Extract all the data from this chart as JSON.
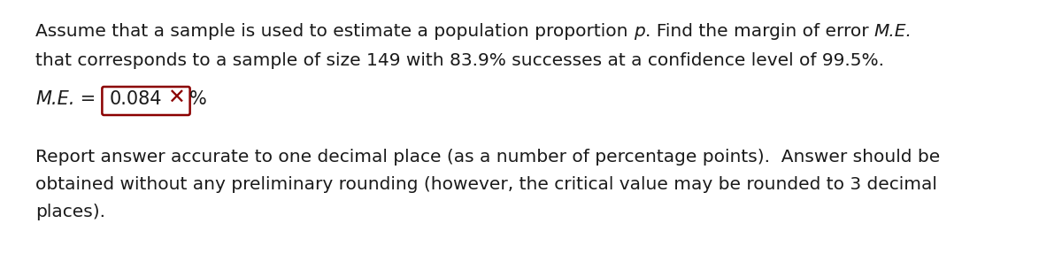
{
  "bg_color": "#ffffff",
  "text_color": "#1a1a1a",
  "me_x_color": "#8B0000",
  "me_box_color": "#8B0000",
  "font_size": 14.5,
  "font_size_me": 15.0,
  "line1_part1": "Assume that a sample is used to estimate a population proportion ",
  "line1_italic1": "p",
  "line1_part2": ". Find the margin of error ",
  "line1_italic2": "M.E.",
  "line2": "that corresponds to a sample of size 149 with 83.9% successes at a confidence level of 99.5%.",
  "me_label_italic": "M.E.",
  "me_equals": " = ",
  "me_value": "0.084",
  "me_xmark": "✕",
  "me_suffix": "%",
  "report1": "Report answer accurate to one decimal place (as a number of percentage points).  Answer should be",
  "report2": "obtained without any preliminary rounding (however, the critical value may be rounded to 3 decimal",
  "report3": "places).",
  "fig_width": 12.0,
  "fig_height": 2.96,
  "dpi": 100
}
